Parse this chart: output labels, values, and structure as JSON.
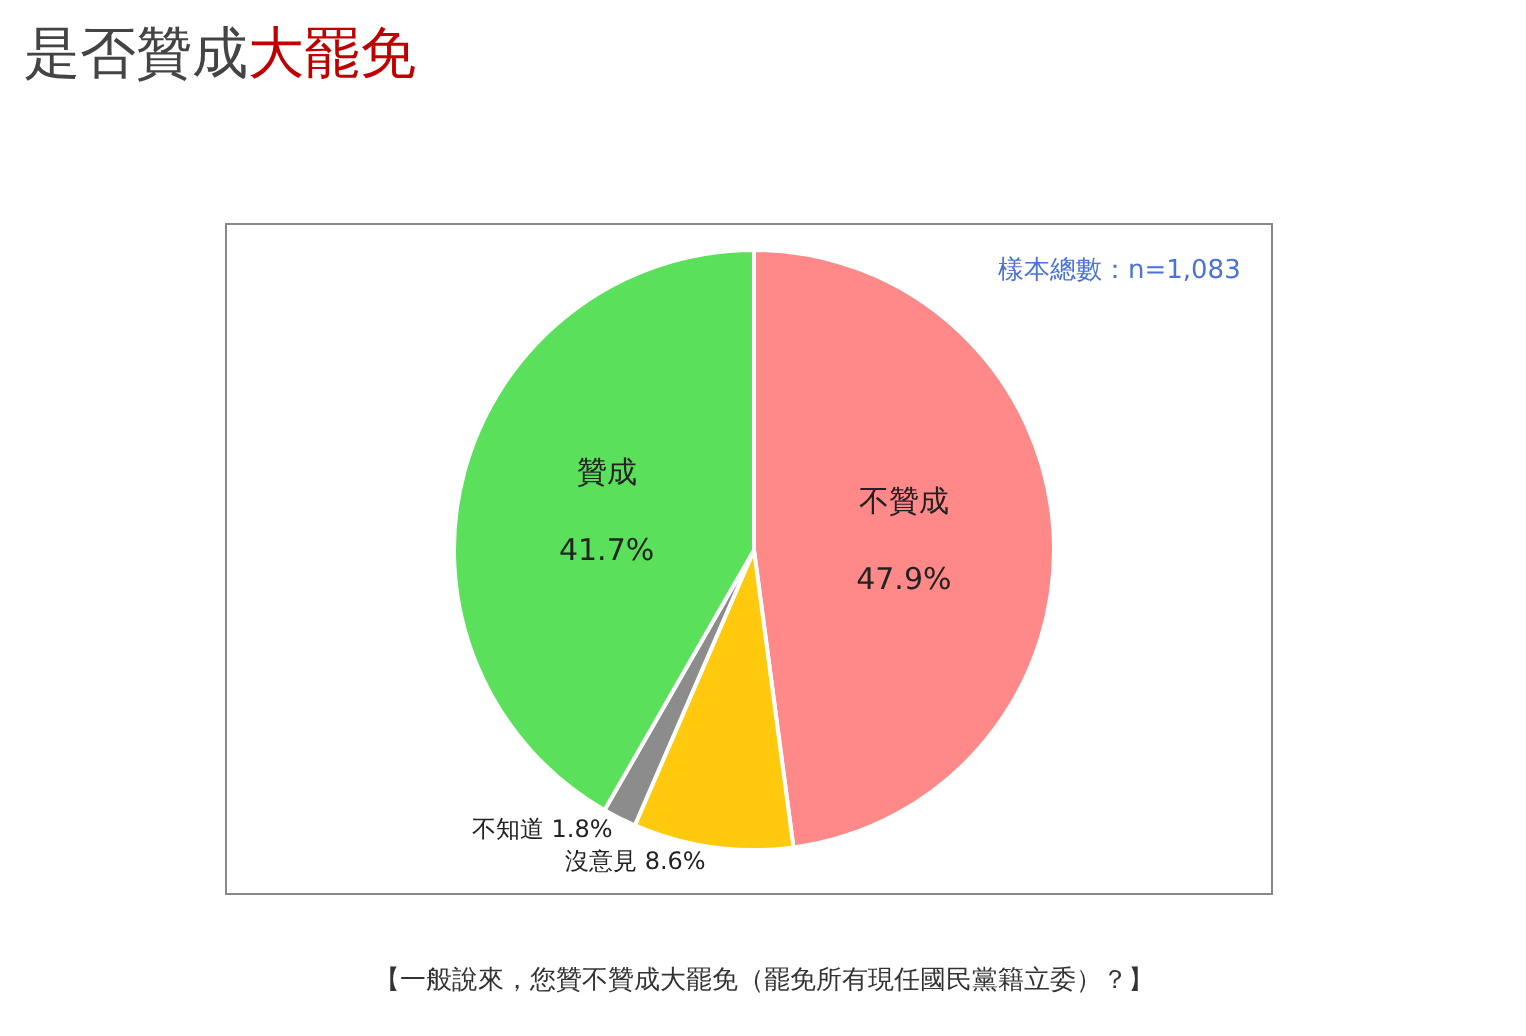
{
  "chart_data": {
    "type": "pie",
    "title": "是否贊成大罷免",
    "categories": [
      "不贊成",
      "沒意見",
      "不知道",
      "贊成"
    ],
    "values": [
      47.9,
      8.6,
      1.8,
      41.7
    ],
    "value_labels": [
      "47.9%",
      "8.6%",
      "1.8%",
      "41.7%"
    ],
    "colors": [
      "#ff8888",
      "#ffc90e",
      "#8c8c8c",
      "#5ae05a"
    ],
    "annotations": [
      "樣本總數：n=1,083",
      "【一般說來，您贊不贊成大罷免（罷免所有現任國民黨籍立委）？】"
    ],
    "legend": false
  }
}
